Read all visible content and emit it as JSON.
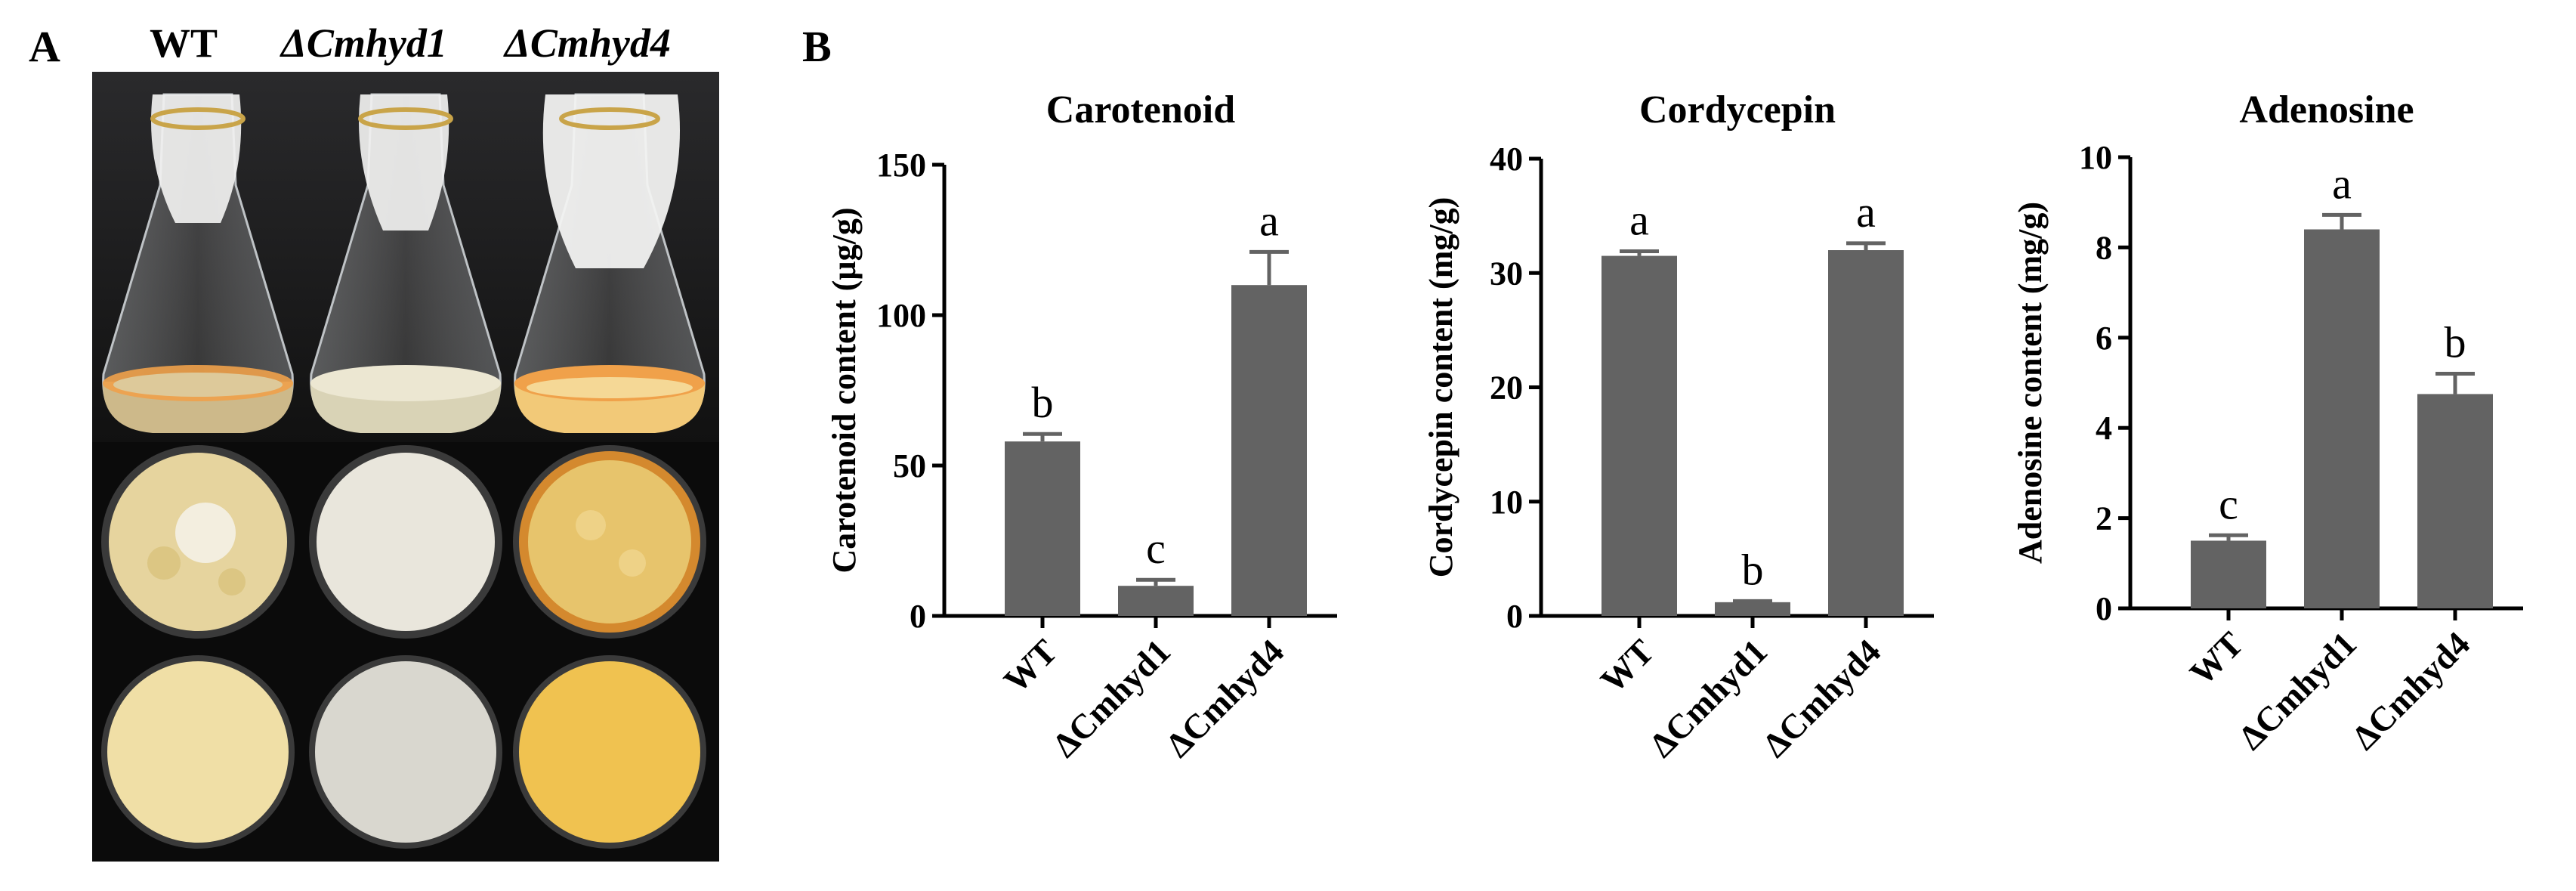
{
  "panel_labels": {
    "a": "A",
    "b": "B"
  },
  "photo_panel": {
    "column_headers": [
      "WT",
      "ΔCmhyd1",
      "ΔCmhyd4"
    ],
    "rows": [
      "flask-culture",
      "plate-top-view",
      "plate-bottom-view"
    ],
    "colors": {
      "background": "#0b0b0b",
      "wt_culture": "#e9d9a8",
      "hyd1_culture": "#e6e2cf",
      "hyd4_culture": "#f0c96a",
      "orange_ring": "#f0a14a"
    }
  },
  "colors": {
    "bar": "#636363",
    "axis": "#000000",
    "text": "#000000"
  },
  "chart_data": [
    {
      "type": "bar",
      "title": "Carotenoid",
      "xlabel": "",
      "ylabel": "Carotenoid content (µg/g)",
      "categories": [
        "WT",
        "ΔCmhyd1",
        "ΔCmhyd4"
      ],
      "values": [
        58,
        10,
        110
      ],
      "errors": [
        2.5,
        2,
        11
      ],
      "significance_letters": [
        "b",
        "c",
        "a"
      ],
      "ylim": [
        0,
        150
      ],
      "yticks": [
        0,
        50,
        100,
        150
      ],
      "grid": false
    },
    {
      "type": "bar",
      "title": "Cordycepin",
      "xlabel": "",
      "ylabel": "Cordycepin content (mg/g)",
      "categories": [
        "WT",
        "ΔCmhyd1",
        "ΔCmhyd4"
      ],
      "values": [
        31.5,
        1.2,
        32
      ],
      "errors": [
        0.4,
        0.1,
        0.6
      ],
      "significance_letters": [
        "a",
        "b",
        "a"
      ],
      "ylim": [
        0,
        40
      ],
      "yticks": [
        0,
        10,
        20,
        30,
        40
      ],
      "grid": false
    },
    {
      "type": "bar",
      "title": "Adenosine",
      "xlabel": "",
      "ylabel": "Adenosine content (mg/g)",
      "categories": [
        "WT",
        "ΔCmhyd1",
        "ΔCmhyd4"
      ],
      "values": [
        1.5,
        8.4,
        4.75
      ],
      "errors": [
        0.12,
        0.32,
        0.45
      ],
      "significance_letters": [
        "c",
        "a",
        "b"
      ],
      "ylim": [
        0,
        10
      ],
      "yticks": [
        0,
        2,
        4,
        6,
        8,
        10
      ],
      "grid": false
    }
  ]
}
